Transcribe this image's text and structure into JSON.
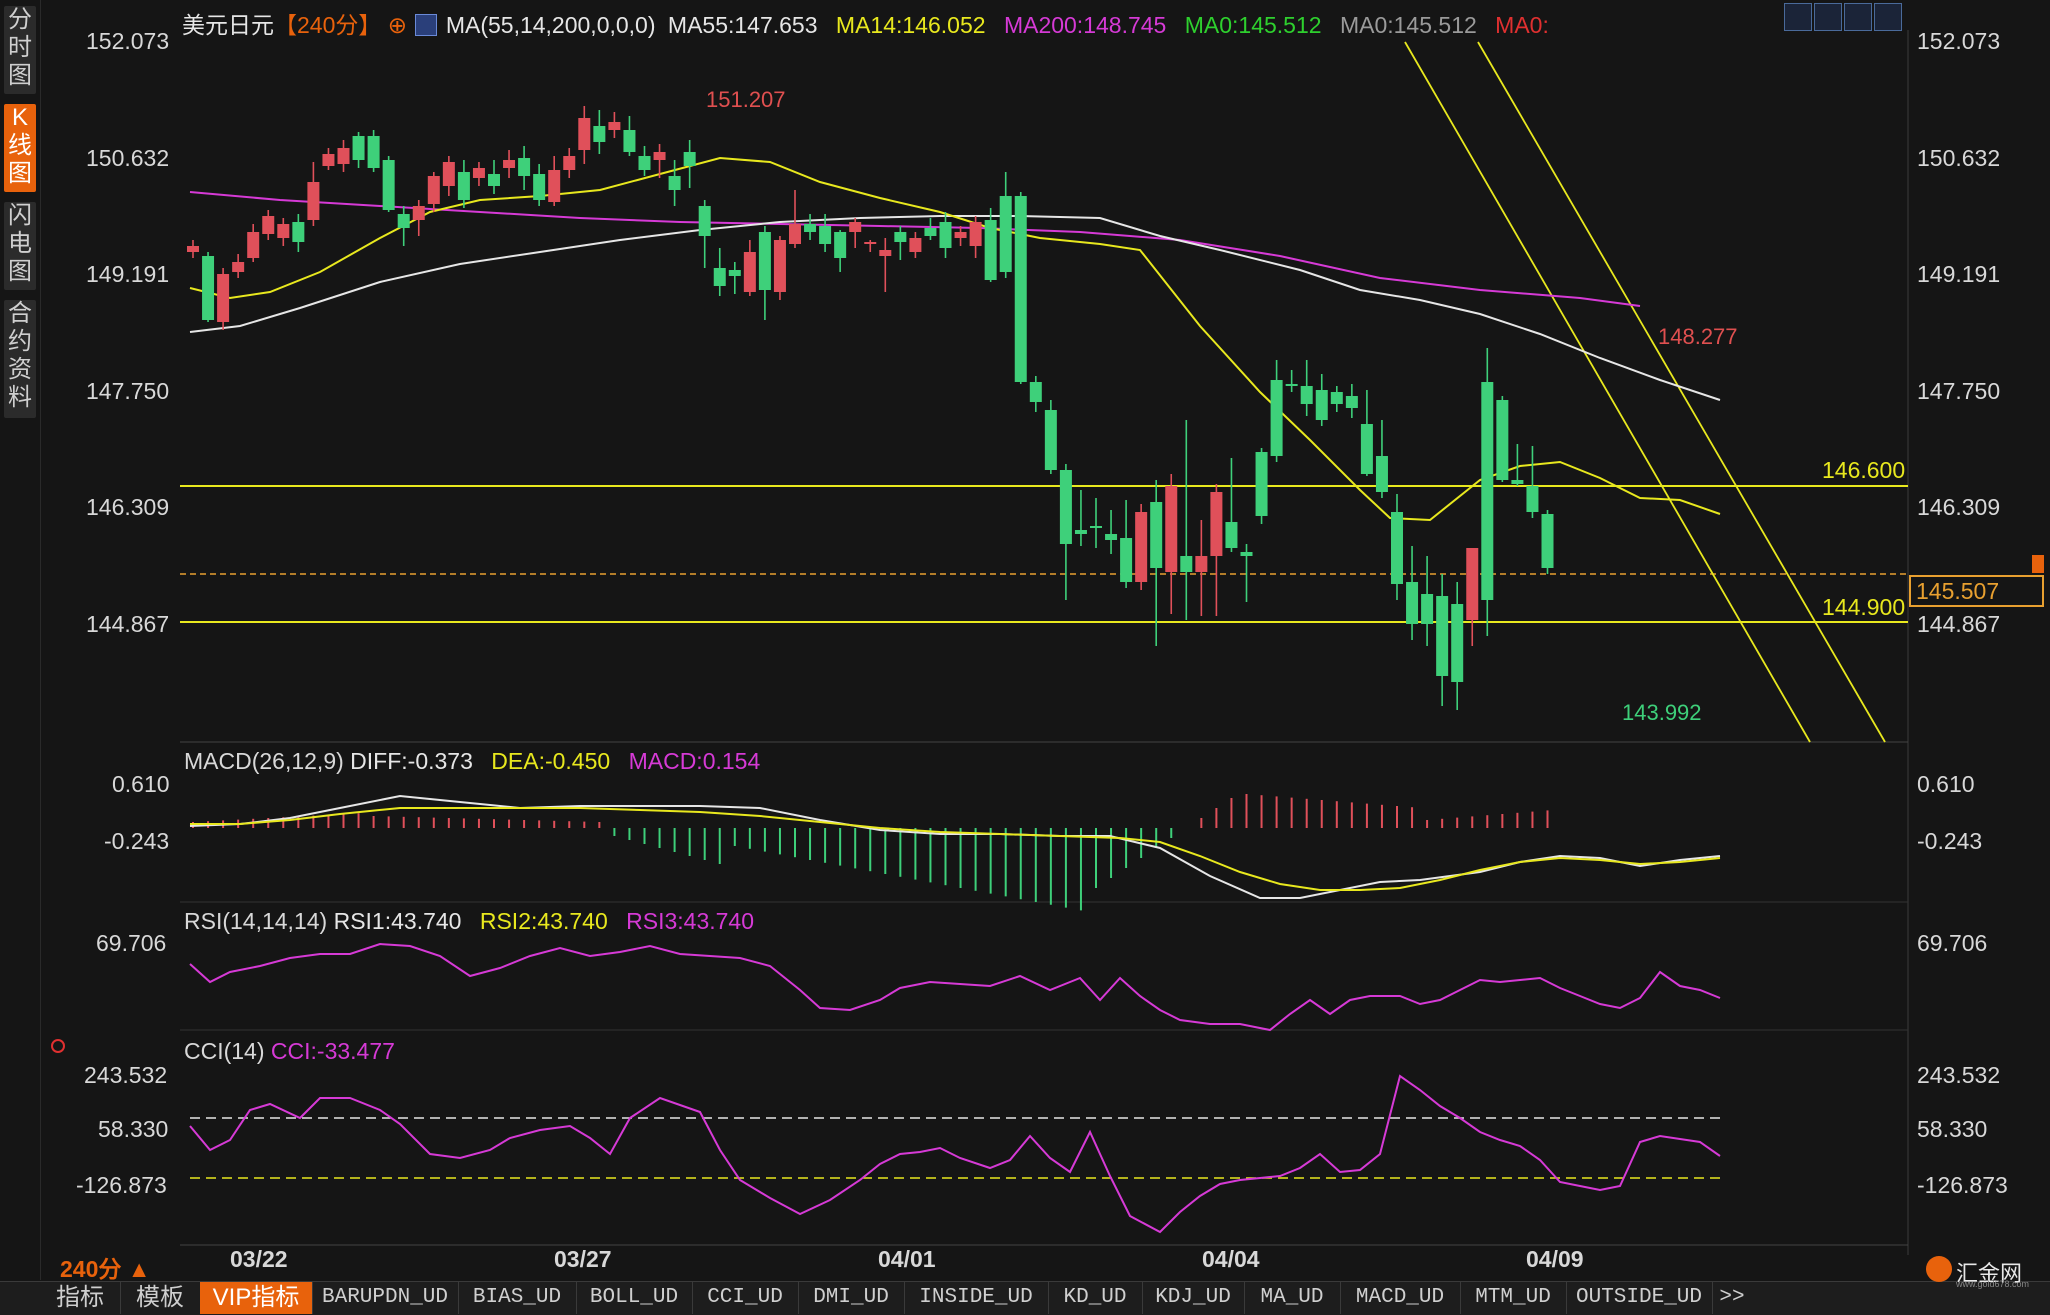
{
  "sidebar": {
    "tabs": [
      {
        "label": "分时图",
        "active": false
      },
      {
        "label": "K线图",
        "active": true
      },
      {
        "label": "闪电图",
        "active": false
      },
      {
        "label": "合约资料",
        "active": false
      }
    ]
  },
  "header": {
    "symbol": "美元日元",
    "period": "【240分】",
    "ma_formula": "MA(55,14,200,0,0,0)",
    "ma55": "MA55:147.653",
    "ma14": "MA14:146.052",
    "ma200": "MA200:148.745",
    "ma0a": "MA0:145.512",
    "ma0b": "MA0:145.512",
    "ma0c": "MA0:",
    "colors": {
      "ma55": "#e6e6e6",
      "ma14": "#e8e81e",
      "ma200": "#d63ad6",
      "ma0a": "#2ed02e",
      "ma0b": "#9a9a9a",
      "ma0c": "#e03030"
    }
  },
  "price_axis": {
    "left": [
      "152.073",
      "150.632",
      "149.191",
      "147.750",
      "146.309",
      "144.867"
    ],
    "right": [
      "152.073",
      "150.632",
      "149.191",
      "147.750",
      "146.309",
      "144.867"
    ]
  },
  "annotations": {
    "high": "151.207",
    "high2": "148.277",
    "low": "143.992",
    "line_upper": "146.600",
    "line_lower": "144.900",
    "current_price": "145.507"
  },
  "macd": {
    "title": "MACD(26,12,9)",
    "diff": "DIFF:-0.373",
    "dea": "DEA:-0.450",
    "macd": "MACD:0.154",
    "axis": [
      "0.610",
      "-0.243"
    ]
  },
  "rsi": {
    "title": "RSI(14,14,14)",
    "rsi1": "RSI1:43.740",
    "rsi2": "RSI2:43.740",
    "rsi3": "RSI3:43.740",
    "axis": [
      "69.706"
    ]
  },
  "cci": {
    "title": "CCI(14)",
    "cci": "CCI:-33.477",
    "axis": [
      "243.532",
      "58.330",
      "-126.873"
    ]
  },
  "time_axis": {
    "period_label": "240分 ▲",
    "dates": [
      "03/22",
      "03/27",
      "04/01",
      "04/04",
      "04/09"
    ]
  },
  "toolbar": {
    "items": [
      "指标",
      "模板",
      "VIP指标",
      "BARUPDN_UD",
      "BIAS_UD",
      "BOLL_UD",
      "CCI_UD",
      "DMI_UD",
      "INSIDE_UD",
      "KD_UD",
      "KDJ_UD",
      "MA_UD",
      "MACD_UD",
      "MTM_UD",
      "OUTSIDE_UD",
      ">>"
    ]
  },
  "brand": {
    "name": "汇金网",
    "url": "www.gold678.com"
  }
}
